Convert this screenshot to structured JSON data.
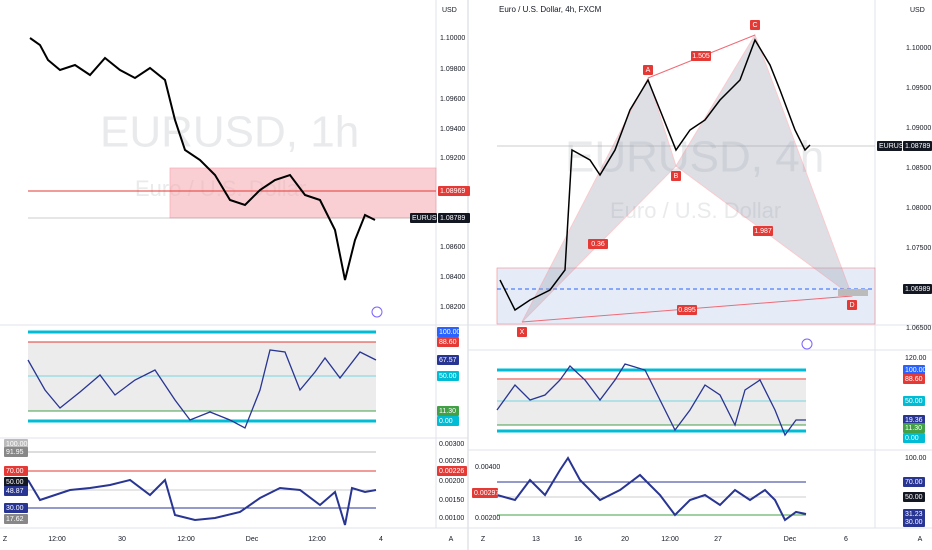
{
  "left": {
    "currency": "USD",
    "watermark": "EURUSD, 1h",
    "watermark_sub": "Euro / U.S. Dollar",
    "price_labels": [
      "1.10000",
      "1.09800",
      "1.09600",
      "1.09400",
      "1.09200",
      "1.08600",
      "1.08400",
      "1.08200"
    ],
    "level_label": "1.08969",
    "symbol": "EURUSD",
    "last_price": "1.08789",
    "osc1_labels": [
      "100.00",
      "88.60",
      "67.57",
      "50.00",
      "11.30",
      "0.00"
    ],
    "osc2_labels": [
      "100.00",
      "91.95",
      "70.00",
      "50.00",
      "48.87",
      "30.00",
      "17.62"
    ],
    "osc2_right": [
      "0.00300",
      "0.00250",
      "0.00226",
      "0.00200",
      "0.00150",
      "0.00100"
    ],
    "time_labels": [
      "12:00",
      "30",
      "12:00",
      "Dec",
      "12:00",
      "4"
    ]
  },
  "right": {
    "title": "Euro / U.S. Dollar, 4h, FXCM",
    "currency": "USD",
    "watermark": "EURUSD, 4h",
    "watermark_sub": "Euro / U.S. Dollar",
    "price_labels": [
      "1.10000",
      "1.09500",
      "1.09000",
      "1.08500",
      "1.08000",
      "1.07500",
      "1.06500"
    ],
    "symbol": "EURUSD",
    "last_price": "1.08789",
    "level_label": "1.06989",
    "points": [
      "X",
      "A",
      "B",
      "C",
      "D"
    ],
    "ratios": [
      "1.505",
      "0.36",
      "1.987",
      "0.895"
    ],
    "osc1_labels": [
      "120.00",
      "100.00",
      "88.60",
      "50.00",
      "19.36",
      "11.30",
      "0.00"
    ],
    "osc2_labels": [
      "100.00",
      "70.00",
      "50.00",
      "31.23",
      "30.00"
    ],
    "osc2_left": [
      "0.00400",
      "0.00297",
      "0.00200"
    ],
    "time_labels": [
      "13",
      "16",
      "20",
      "12:00",
      "27",
      "Dec",
      "6"
    ]
  },
  "axis_buttons": [
    "Z",
    "A"
  ]
}
